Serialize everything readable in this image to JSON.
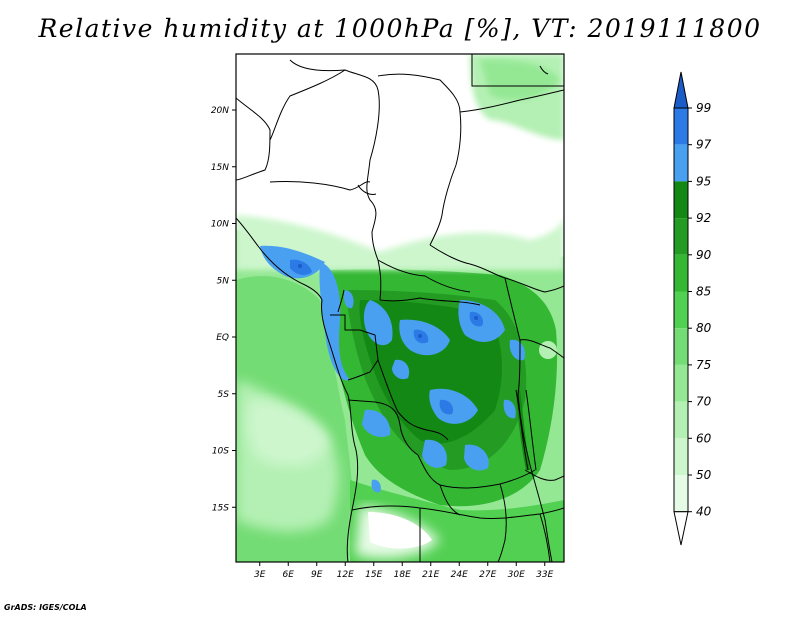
{
  "title": "Relative humidity at 1000hPa [%], VT: 2019111800",
  "credit": "GrADS: IGES/COLA",
  "map": {
    "lat_labels": [
      "20N",
      "15N",
      "10N",
      "5N",
      "EQ",
      "5S",
      "10S",
      "15S"
    ],
    "lat_values": [
      20,
      15,
      10,
      5,
      0,
      -5,
      -10,
      -15
    ],
    "lon_labels": [
      "3E",
      "6E",
      "9E",
      "12E",
      "15E",
      "18E",
      "21E",
      "24E",
      "27E",
      "30E",
      "33E"
    ],
    "lon_values": [
      3,
      6,
      9,
      12,
      15,
      18,
      21,
      24,
      27,
      30,
      33
    ]
  },
  "colorbar": {
    "levels": [
      "99",
      "97",
      "95",
      "92",
      "90",
      "85",
      "80",
      "75",
      "70",
      "60",
      "50",
      "40"
    ],
    "colors": {
      "lt40": "#ffffff",
      "c40_50": "#e6fbe6",
      "c50_60": "#cdf6cd",
      "c60_70": "#b4f0b4",
      "c70_75": "#94e894",
      "c75_80": "#74dc74",
      "c80_85": "#52d052",
      "c85_90": "#34b834",
      "c90_92": "#249c24",
      "c92_95": "#148814",
      "c95_97": "#4aa0f0",
      "c97_99": "#2c7ae6",
      "gt99": "#1a5cc8"
    }
  }
}
